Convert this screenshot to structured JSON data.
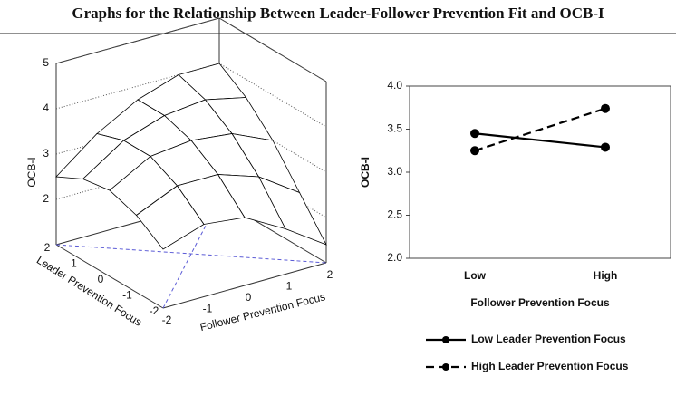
{
  "title": "Graphs for the Relationship Between Leader-Follower Prevention Fit and OCB-I",
  "chart_data": [
    {
      "type": "surface",
      "x_label": "Follower Prevention Focus",
      "y_label": "Leader Prevention Focus",
      "z_label": "OCB-I",
      "xlim": [
        -2,
        2
      ],
      "xticks": [
        -2,
        -1,
        0,
        1,
        2
      ],
      "ylim": [
        -2,
        2
      ],
      "yticks": [
        2,
        1,
        0,
        -1,
        -2
      ],
      "zlim": [
        1,
        5
      ],
      "zticks": [
        2,
        3,
        4,
        5
      ],
      "x": [
        -2,
        -1,
        0,
        1,
        2
      ],
      "y": [
        2,
        1,
        0,
        -1,
        -2
      ],
      "z": [
        [
          2.5,
          3.2,
          3.7,
          4.0,
          4.0
        ],
        [
          2.8,
          3.4,
          3.7,
          3.8,
          3.6
        ],
        [
          2.9,
          3.4,
          3.5,
          3.4,
          3.0
        ],
        [
          2.7,
          3.1,
          3.1,
          2.8,
          2.2
        ],
        [
          2.3,
          2.6,
          2.5,
          2.0,
          1.4
        ]
      ],
      "color": "#000000",
      "floor_line_color": "#5a5ad6"
    },
    {
      "type": "line",
      "x_label": "Follower Prevention Focus",
      "y_label": "OCB-I",
      "categories": [
        "Low",
        "High"
      ],
      "ylim": [
        2,
        4
      ],
      "yticks": [
        {
          "value": 2,
          "label": "2.0"
        },
        {
          "value": 2.5,
          "label": "2.5"
        },
        {
          "value": 3,
          "label": "3.0"
        },
        {
          "value": 3.5,
          "label": "3.5"
        },
        {
          "value": 4,
          "label": "4.0"
        }
      ],
      "series": [
        {
          "name": "Low Leader Prevention Focus",
          "color": "#000000",
          "linestyle": "solid",
          "values": [
            3.45,
            3.29
          ]
        },
        {
          "name": "High Leader Prevention Focus",
          "color": "#000000",
          "linestyle": "dashed",
          "values": [
            3.25,
            3.74
          ]
        }
      ]
    }
  ]
}
